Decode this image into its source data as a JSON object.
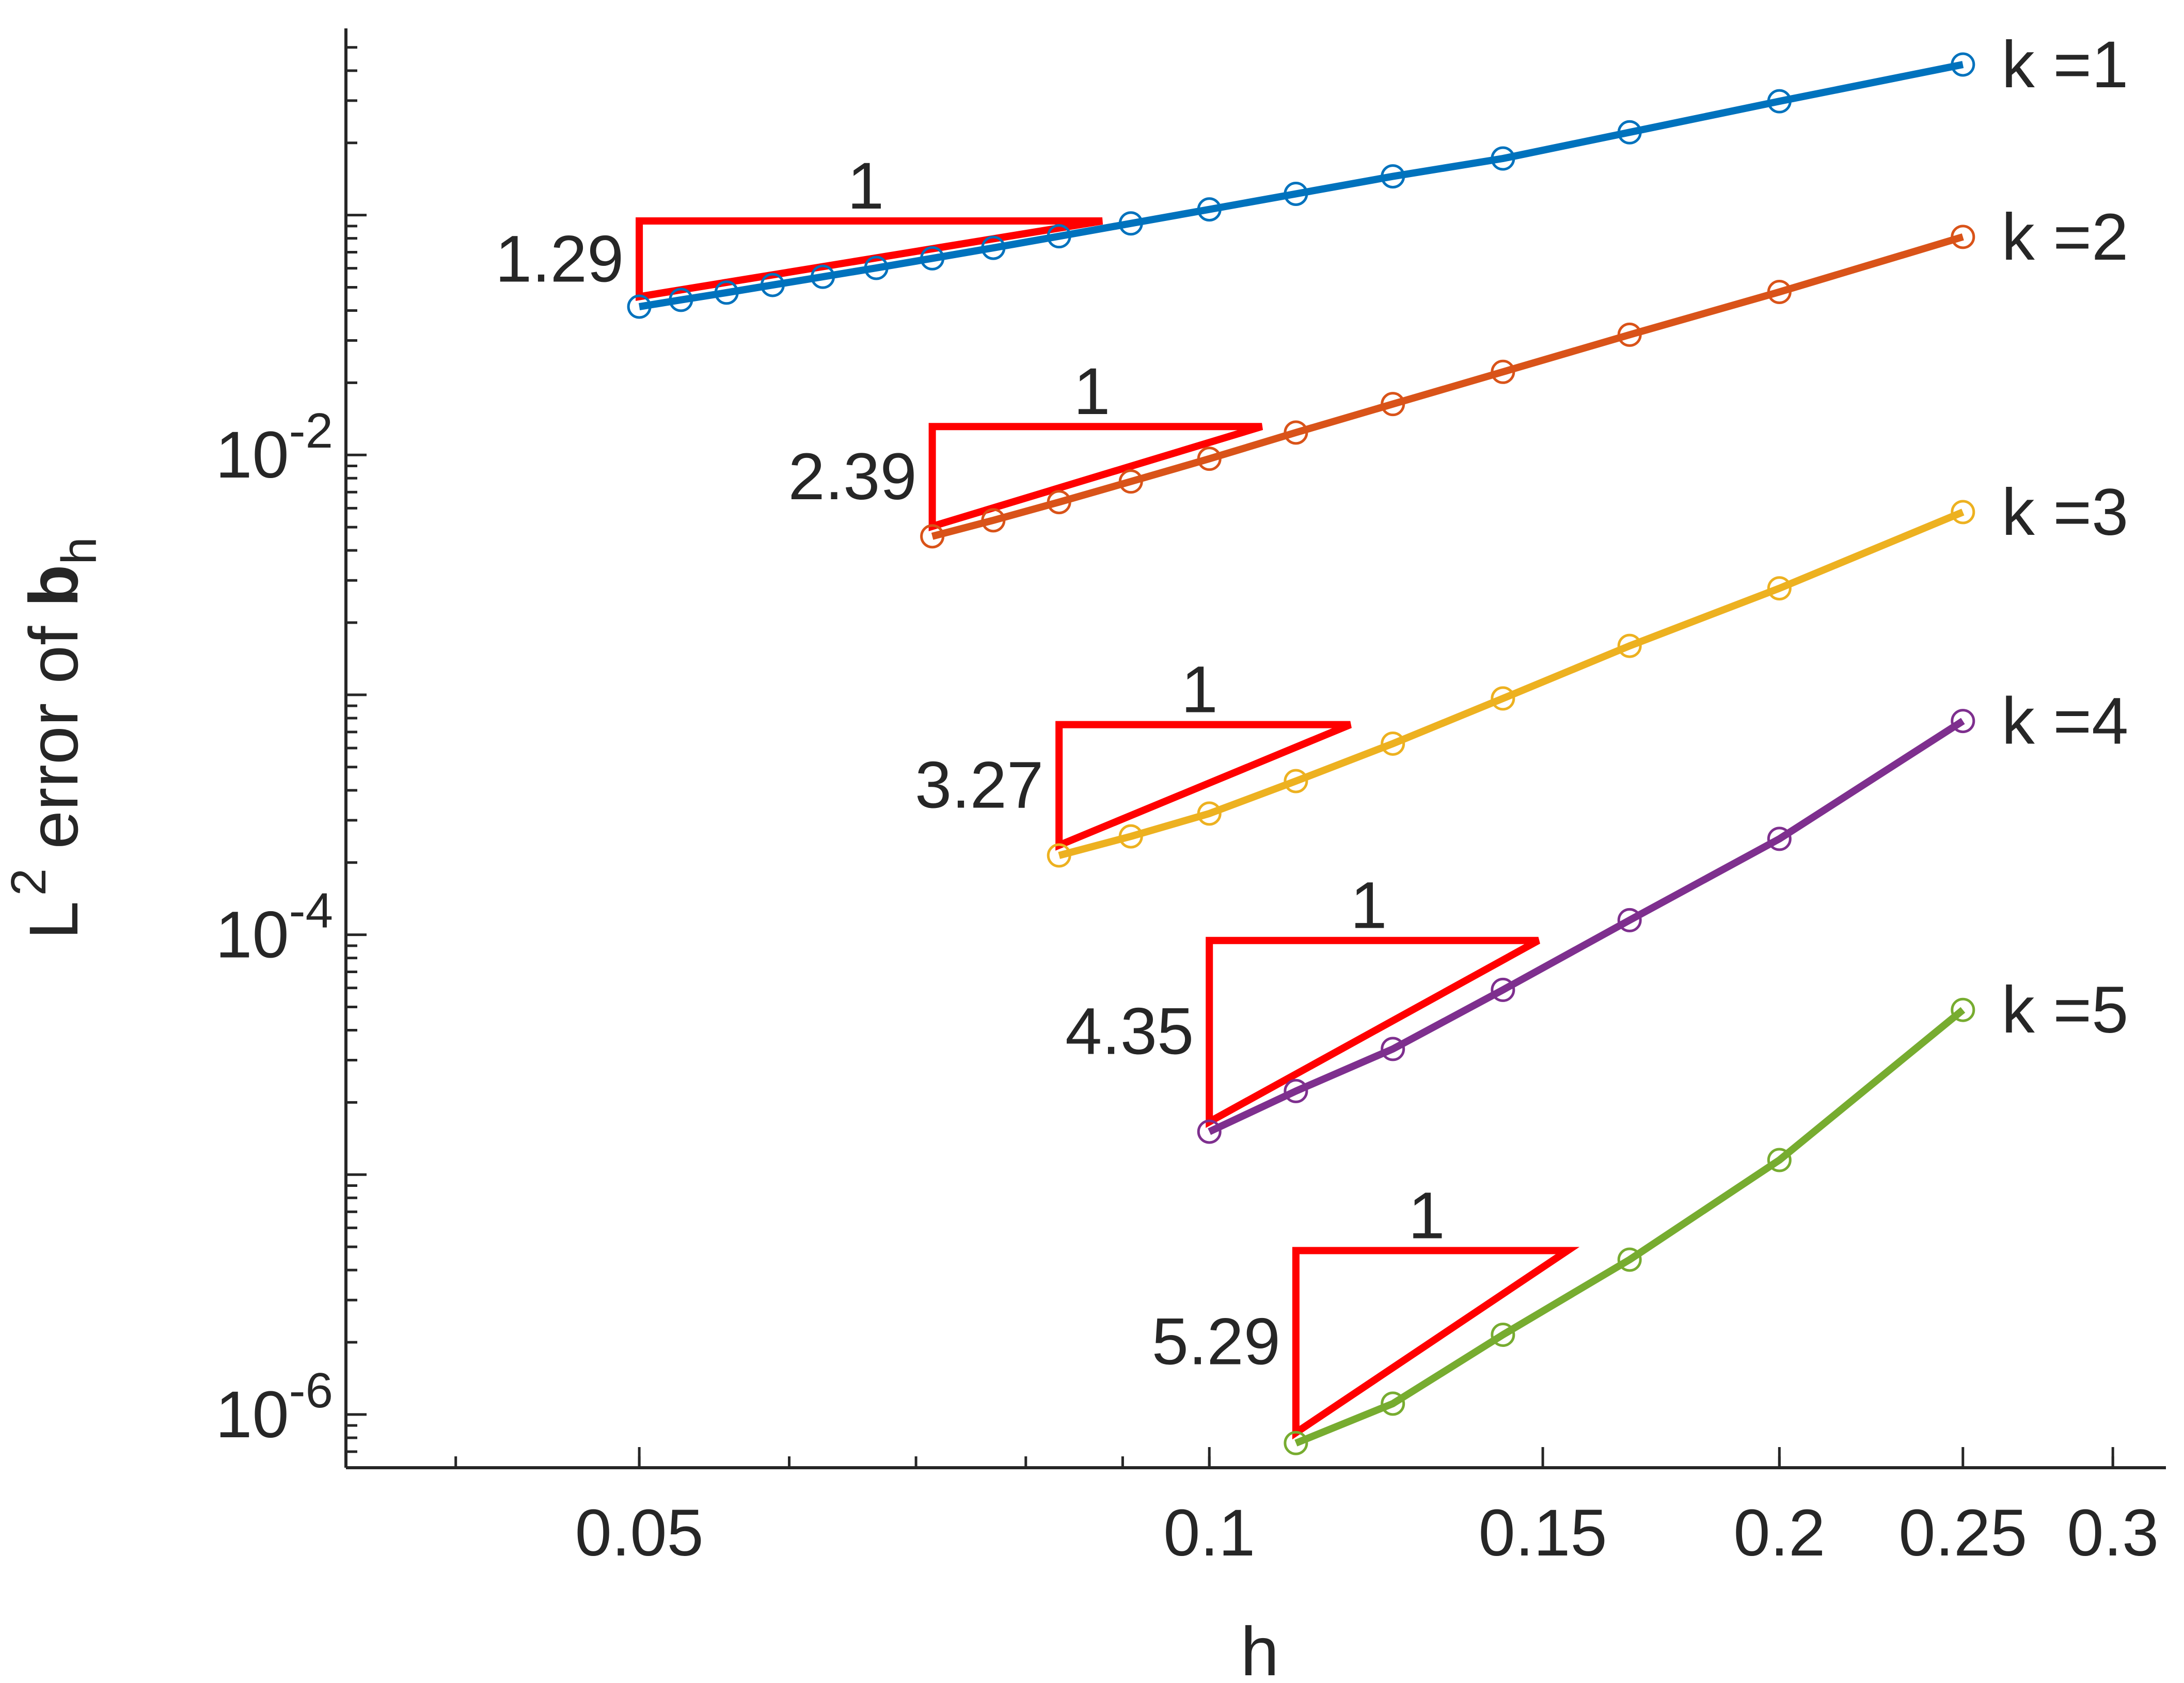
{
  "chart_data": {
    "type": "line",
    "scale": {
      "x": "log",
      "y": "log"
    },
    "xlabel": "h",
    "ylabel": "L",
    "ylabel_sup": "2",
    "ylabel_mid": " error of ",
    "ylabel_bold": "b",
    "ylabel_sub": "h",
    "xlim": [
      0.035,
      0.32
    ],
    "ylim": [
      6e-07,
      0.6
    ],
    "xticks": [
      {
        "value": 0.05,
        "label": "0.05"
      },
      {
        "value": 0.1,
        "label": "0.1"
      },
      {
        "value": 0.15,
        "label": "0.15"
      },
      {
        "value": 0.2,
        "label": "0.2"
      },
      {
        "value": 0.25,
        "label": "0.25"
      },
      {
        "value": 0.3,
        "label": "0.3"
      }
    ],
    "yticks": [
      {
        "value": 0.01,
        "base": "10",
        "exp": "-2"
      },
      {
        "value": 0.0001,
        "base": "10",
        "exp": "-4"
      },
      {
        "value": 1e-06,
        "base": "10",
        "exp": "-6"
      }
    ],
    "series": [
      {
        "name": "k =1",
        "color": "#0072BD",
        "x": [
          0.05,
          0.0526,
          0.0556,
          0.0588,
          0.0625,
          0.0667,
          0.0714,
          0.0769,
          0.0833,
          0.0909,
          0.1,
          0.1111,
          0.125,
          0.1429,
          0.1667,
          0.2,
          0.25
        ],
        "y": [
          0.0415,
          0.0443,
          0.0475,
          0.0511,
          0.0553,
          0.0602,
          0.066,
          0.073,
          0.0816,
          0.0923,
          0.1056,
          0.1226,
          0.145,
          0.1721,
          0.2213,
          0.2981,
          0.4242
        ]
      },
      {
        "name": "k =2",
        "color": "#D95319",
        "x": [
          0.0714,
          0.0769,
          0.0833,
          0.0909,
          0.1,
          0.1111,
          0.125,
          0.1429,
          0.1667,
          0.2,
          0.25
        ],
        "y": [
          0.00458,
          0.00534,
          0.00636,
          0.00775,
          0.00964,
          0.0124,
          0.0163,
          0.0222,
          0.0317,
          0.0478,
          0.0811
        ]
      },
      {
        "name": "k =3",
        "color": "#EDB120",
        "x": [
          0.0833,
          0.0909,
          0.1,
          0.1111,
          0.125,
          0.1429,
          0.1667,
          0.2,
          0.25
        ],
        "y": [
          0.000214,
          0.000257,
          0.00032,
          0.000437,
          0.000626,
          0.000966,
          0.0016,
          0.00278,
          0.00578
        ]
      },
      {
        "name": "k =4",
        "color": "#7E2F8E",
        "x": [
          0.1,
          0.1111,
          0.125,
          0.1429,
          0.1667,
          0.2,
          0.25
        ],
        "y": [
          1.51e-05,
          2.23e-05,
          3.34e-05,
          5.89e-05,
          0.000115,
          0.000251,
          0.000778
        ]
      },
      {
        "name": "k =5",
        "color": "#77AC30",
        "x": [
          0.1111,
          0.125,
          0.1429,
          0.1667,
          0.2,
          0.25
        ],
        "y": [
          7.6e-07,
          1.11e-06,
          2.15e-06,
          4.42e-06,
          1.15e-05,
          4.86e-05
        ]
      }
    ],
    "slope_triangles": [
      {
        "x1": 0.05,
        "x2": 0.0878,
        "y_low": 0.0457,
        "slope_label": "1.29",
        "run_label": "1"
      },
      {
        "x1": 0.0714,
        "x2": 0.1066,
        "y_low": 0.00504,
        "slope_label": "2.39",
        "run_label": "1"
      },
      {
        "x1": 0.0833,
        "x2": 0.1187,
        "y_low": 0.000236,
        "slope_label": "3.27",
        "run_label": "1"
      },
      {
        "x1": 0.1,
        "x2": 0.1492,
        "y_low": 1.66e-05,
        "slope_label": "4.35",
        "run_label": "1"
      },
      {
        "x1": 0.1111,
        "x2": 0.1546,
        "y_low": 8.4e-07,
        "slope_label": "5.29",
        "run_label": "1"
      }
    ],
    "triangle_color": "#FF0000",
    "axis_color": "#262626",
    "grid": false
  }
}
